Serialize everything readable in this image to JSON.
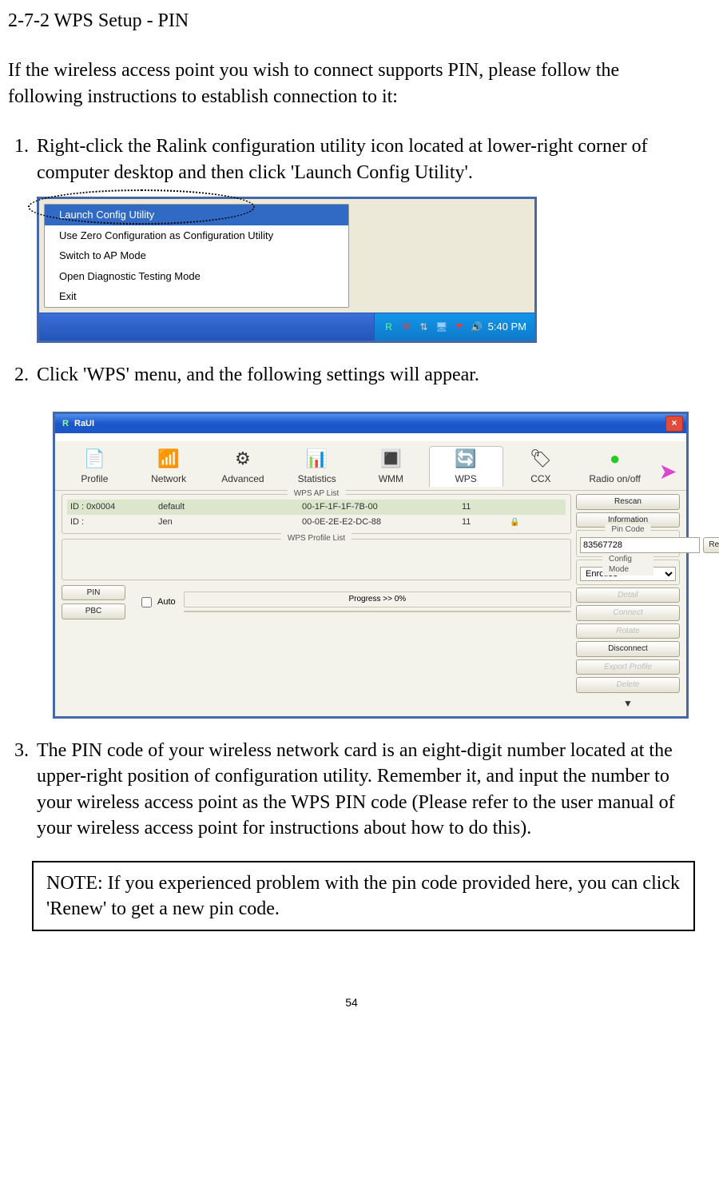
{
  "section_title": "2-7-2 WPS Setup - PIN",
  "intro": "If the wireless access point you wish to connect supports PIN, please follow the following instructions to establish connection to it:",
  "steps": {
    "s1": "Right-click the Ralink configuration utility icon located at lower-right corner of computer desktop and then click 'Launch Config Utility'.",
    "s2": "Click 'WPS' menu, and the following settings will appear.",
    "s3": "The PIN code of your wireless network card is an eight-digit number located at the upper-right position of configuration utility. Remember it, and input the number to your wireless access point as the WPS PIN code (Please refer to the user manual of your wireless access point for instructions about how to do this)."
  },
  "note": "NOTE: If you experienced problem with the pin code provided here, you can click 'Renew' to get a new pin code.",
  "page_num": "54",
  "context_menu": {
    "items": {
      "m1": "Launch Config Utility",
      "m2": "Use Zero Configuration as Configuration Utility",
      "m3": "Switch to AP Mode",
      "m4": "Open Diagnostic Testing Mode",
      "m5": "Exit"
    },
    "selected_index": 0
  },
  "tray": {
    "time": "5:40 PM"
  },
  "raui": {
    "title": "RaUI",
    "tabs": {
      "profile": "Profile",
      "network": "Network",
      "advanced": "Advanced",
      "statistics": "Statistics",
      "wmm": "WMM",
      "wps": "WPS",
      "ccx": "CCX",
      "radio": "Radio on/off"
    },
    "wps_ap_list_title": "WPS AP List",
    "ap_rows": [
      {
        "id": "ID : 0x0004",
        "ssid": "default",
        "bssid": "00-1F-1F-1F-7B-00",
        "ch": "11",
        "lock": ""
      },
      {
        "id": "ID :",
        "ssid": "Jen",
        "bssid": "00-0E-2E-E2-DC-88",
        "ch": "11",
        "lock": "🔒"
      }
    ],
    "wps_profile_list_title": "WPS Profile List",
    "buttons": {
      "rescan": "Rescan",
      "information": "Information",
      "renew": "Renew",
      "detail": "Detail",
      "connect": "Connect",
      "rotate": "Rotate",
      "disconnect": "Disconnect",
      "export": "Export Profile",
      "delete": "Delete",
      "pin": "PIN",
      "pbc": "PBC"
    },
    "pin_group_title": "Pin Code",
    "pin_value": "83567728",
    "config_mode_title": "Config Mode",
    "config_mode_value": "Enrollee",
    "auto_label": "Auto",
    "progress": "Progress >> 0%"
  }
}
